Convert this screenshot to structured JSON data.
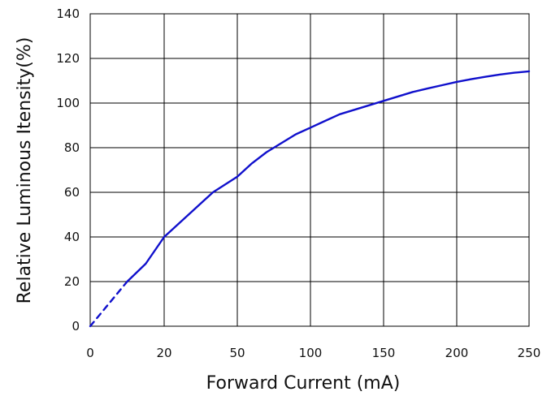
{
  "chart_data": {
    "type": "line",
    "title": "",
    "xlabel": "Forward Current  (mA)",
    "ylabel": "Relative Luminous Itensity(%)",
    "x_tick_labels": [
      "0",
      "20",
      "50",
      "100",
      "150",
      "200",
      "250"
    ],
    "y_tick_labels": [
      "0",
      "20",
      "40",
      "60",
      "80",
      "100",
      "120",
      "140"
    ],
    "xlim_index": [
      0,
      6
    ],
    "ylim": [
      0,
      140
    ],
    "grid": true,
    "legend": "none",
    "series": [
      {
        "style": "dashed",
        "x": [
          0,
          10
        ],
        "y": [
          0,
          20
        ]
      },
      {
        "style": "solid",
        "x": [
          10,
          15,
          20,
          30,
          40,
          50,
          60,
          70,
          80,
          90,
          100,
          110,
          120,
          130,
          140,
          150,
          160,
          170,
          180,
          190,
          200,
          210,
          220,
          230,
          240,
          250
        ],
        "y": [
          20,
          28,
          40,
          50,
          60,
          67,
          73,
          78,
          82,
          86,
          89,
          92,
          95,
          97,
          99,
          101,
          103,
          105,
          106.5,
          108,
          109.5,
          110.7,
          111.8,
          112.8,
          113.6,
          114.2
        ]
      }
    ],
    "colors": {
      "line": "#1010cc",
      "grid": "#000000"
    }
  }
}
